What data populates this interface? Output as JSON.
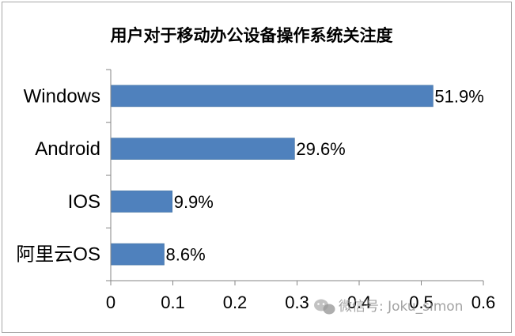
{
  "chart_data": {
    "type": "bar",
    "orientation": "horizontal",
    "title": "用户对于移动办公设备操作系统关注度",
    "categories": [
      "Windows",
      "Android",
      "IOS",
      "阿里云OS"
    ],
    "values": [
      0.519,
      0.296,
      0.099,
      0.086
    ],
    "data_labels": [
      "51.9%",
      "29.6%",
      "9.9%",
      "8.6%"
    ],
    "xlim": [
      0,
      0.6
    ],
    "xticks": [
      "0",
      "0.1",
      "0.2",
      "0.3",
      "0.4",
      "0.5",
      "0.6"
    ],
    "bar_color": "#4f81bd",
    "grid": false,
    "legend": "none"
  },
  "watermark": {
    "icon": "wechat-icon",
    "text": "微信号: Joku_simon"
  }
}
